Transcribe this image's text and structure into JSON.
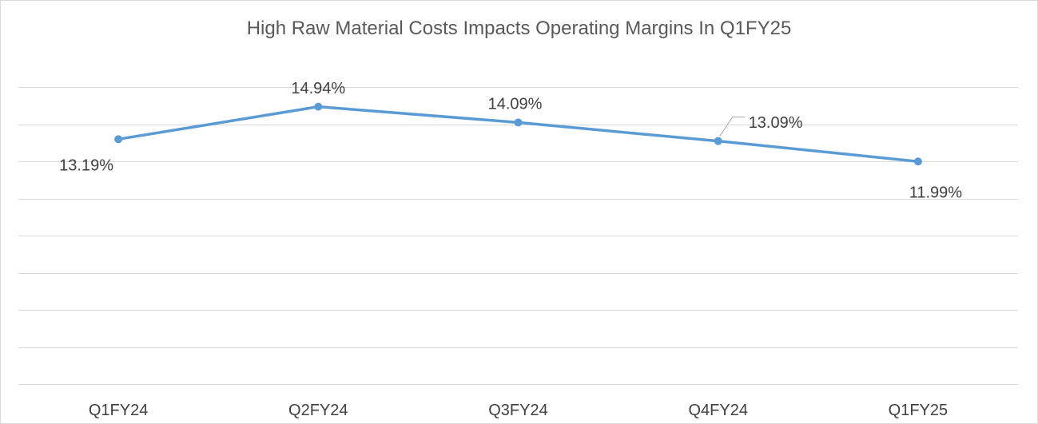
{
  "chart_data": {
    "type": "line",
    "title": "High Raw Material Costs Impacts Operating Margins In Q1FY25",
    "categories": [
      "Q1FY24",
      "Q2FY24",
      "Q3FY24",
      "Q4FY24",
      "Q1FY25"
    ],
    "series": [
      {
        "values": [
          13.19,
          14.94,
          14.09,
          13.09,
          11.99
        ],
        "data_labels": [
          "13.19%",
          "14.94%",
          "14.09%",
          "13.09%",
          "11.99%"
        ],
        "color": "#5b9bd5"
      }
    ],
    "ylim": [
      0,
      16
    ],
    "y_major_unit": 2,
    "grid": true,
    "y_axis_labels_visible": false,
    "legend": "none"
  }
}
